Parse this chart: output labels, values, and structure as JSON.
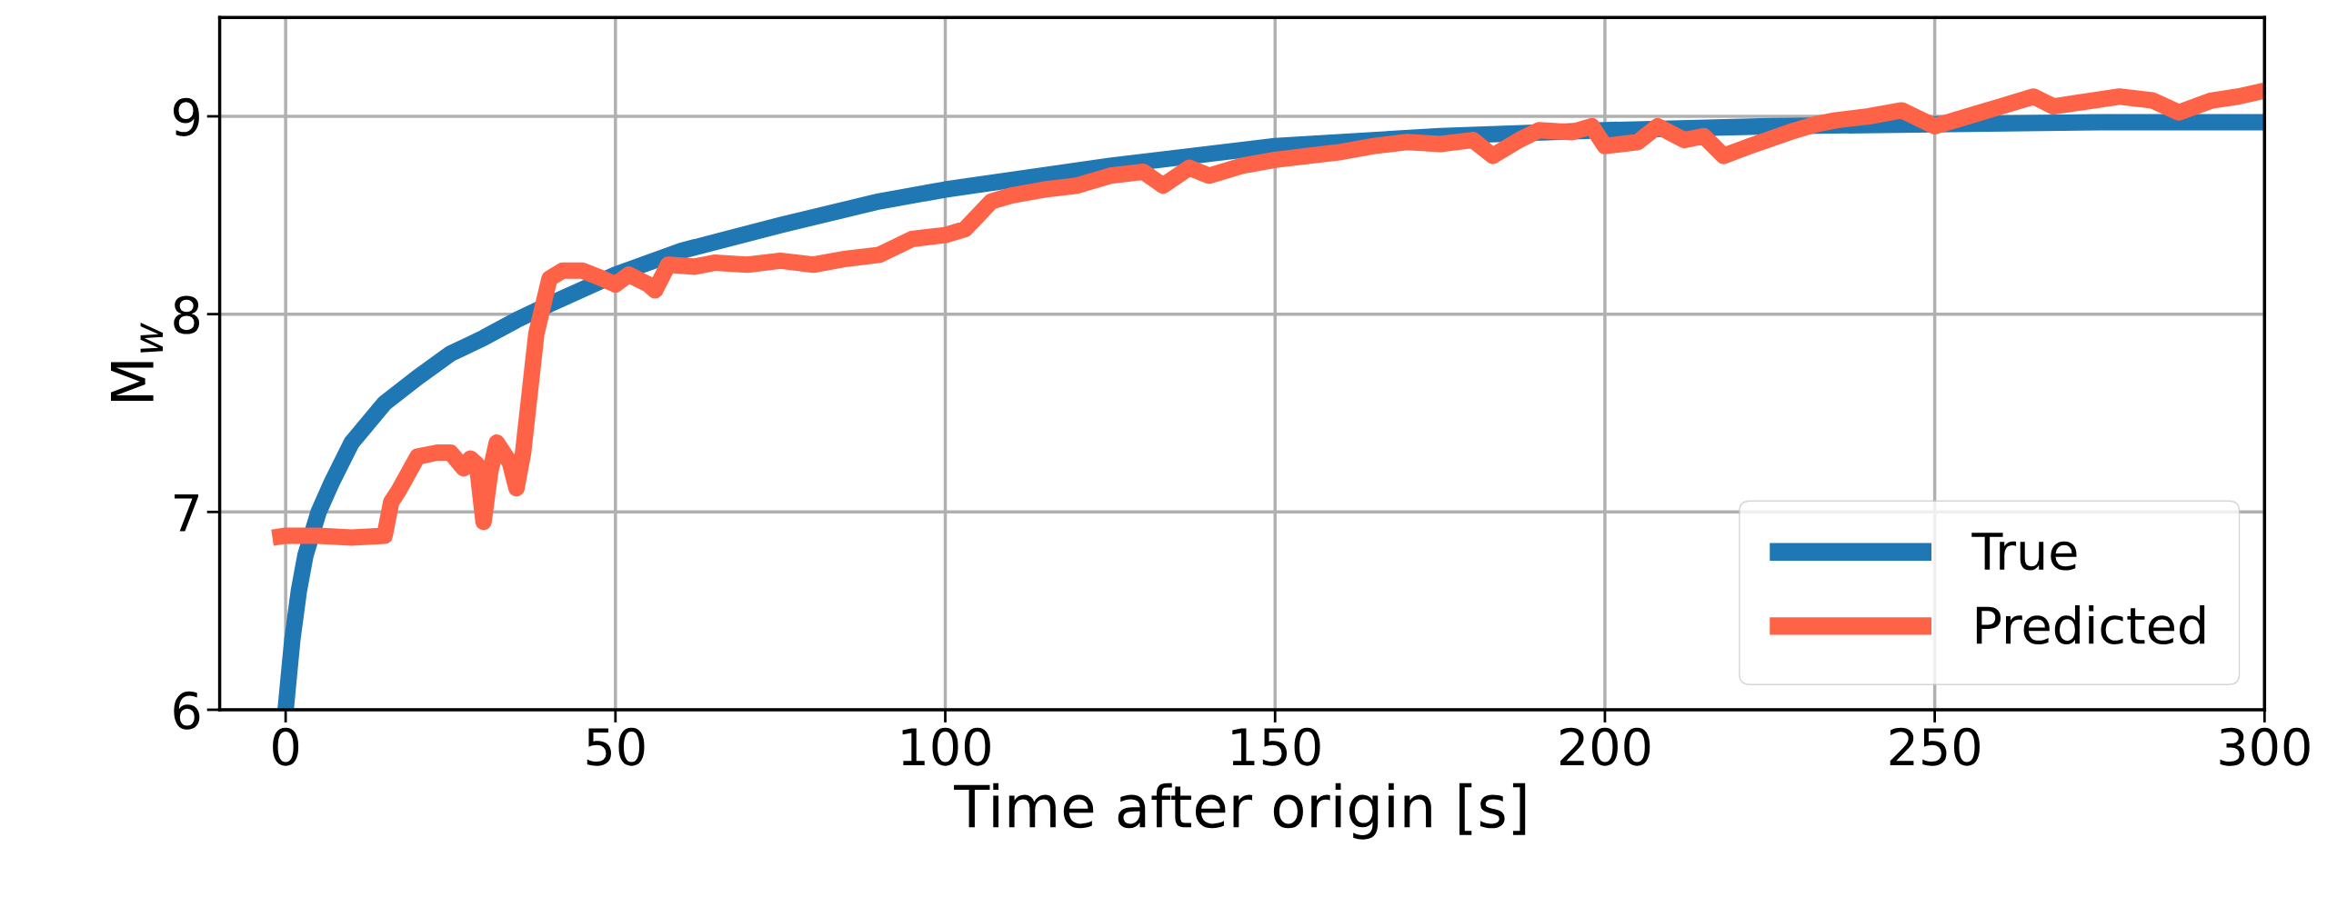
{
  "chart_data": {
    "type": "line",
    "xlabel": "Time after origin [s]",
    "ylabel": "M$_{w}$",
    "xlim": [
      -10,
      300
    ],
    "xticks": [
      0,
      50,
      100,
      150,
      200,
      250,
      300
    ],
    "ylim": [
      6,
      9.5
    ],
    "yticks": [
      6,
      7,
      8,
      9
    ],
    "grid": true,
    "legend": "bottom right",
    "marker": "none",
    "line_style": "solid",
    "series": [
      {
        "name": "True",
        "color": "#1f77b4",
        "x": [
          0,
          1,
          2,
          3,
          5,
          7,
          10,
          15,
          20,
          25,
          30,
          35,
          40,
          50,
          60,
          75,
          90,
          100,
          125,
          150,
          175,
          200,
          225,
          250,
          275,
          300
        ],
        "values": [
          6.0,
          6.35,
          6.6,
          6.78,
          7.0,
          7.15,
          7.35,
          7.55,
          7.68,
          7.8,
          7.88,
          7.97,
          8.05,
          8.2,
          8.32,
          8.45,
          8.57,
          8.63,
          8.75,
          8.85,
          8.9,
          8.93,
          8.95,
          8.96,
          8.97,
          8.97
        ]
      },
      {
        "name": "Predicted",
        "color": "#ff6347",
        "x": [
          -2,
          0,
          5,
          10,
          15,
          16,
          17,
          20,
          23,
          25,
          27,
          28,
          29,
          30,
          31,
          32,
          33,
          34,
          35,
          36,
          37,
          38,
          40,
          42,
          45,
          48,
          50,
          52,
          55,
          56,
          58,
          62,
          65,
          70,
          75,
          80,
          85,
          90,
          95,
          100,
          103,
          107,
          110,
          115,
          120,
          125,
          130,
          133,
          137,
          140,
          145,
          150,
          155,
          160,
          165,
          170,
          175,
          180,
          183,
          187,
          190,
          195,
          198,
          200,
          205,
          208,
          212,
          215,
          218,
          222,
          228,
          232,
          235,
          240,
          245,
          250,
          255,
          260,
          265,
          268,
          272,
          278,
          283,
          287,
          292,
          296,
          300
        ],
        "values": [
          6.87,
          6.88,
          6.88,
          6.87,
          6.88,
          7.05,
          7.1,
          7.28,
          7.3,
          7.3,
          7.22,
          7.27,
          7.24,
          6.95,
          7.2,
          7.35,
          7.3,
          7.25,
          7.12,
          7.3,
          7.6,
          7.9,
          8.18,
          8.22,
          8.22,
          8.18,
          8.15,
          8.2,
          8.15,
          8.12,
          8.25,
          8.24,
          8.26,
          8.25,
          8.27,
          8.25,
          8.28,
          8.3,
          8.38,
          8.4,
          8.43,
          8.57,
          8.6,
          8.63,
          8.65,
          8.7,
          8.72,
          8.65,
          8.74,
          8.7,
          8.75,
          8.78,
          8.8,
          8.82,
          8.85,
          8.87,
          8.86,
          8.88,
          8.8,
          8.88,
          8.93,
          8.92,
          8.95,
          8.85,
          8.87,
          8.95,
          8.88,
          8.9,
          8.8,
          8.85,
          8.92,
          8.96,
          8.98,
          9.0,
          9.03,
          8.95,
          9.0,
          9.05,
          9.1,
          9.05,
          9.07,
          9.1,
          9.08,
          9.02,
          9.08,
          9.1,
          9.13
        ]
      }
    ]
  }
}
